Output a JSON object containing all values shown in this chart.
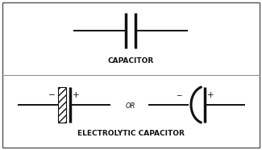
{
  "bg_color": "#ffffff",
  "border_color": "#555555",
  "line_color": "#111111",
  "text_color": "#111111",
  "title1": "CAPACITOR",
  "title2": "ELECTROLYTIC CAPACITOR",
  "title_fontsize": 6.5,
  "label_fontsize": 7.5,
  "or_fontsize": 6.0,
  "line_width": 1.4,
  "figsize": [
    3.25,
    1.86
  ],
  "dpi": 100
}
